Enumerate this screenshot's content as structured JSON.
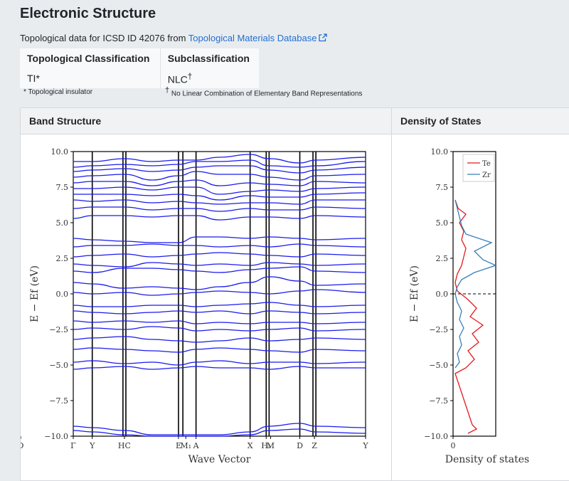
{
  "page": {
    "title": "Electronic Structure",
    "source_prefix": "Topological data for ICSD ID 42076 from ",
    "source_link": "Topological Materials Database"
  },
  "classification": {
    "col1_header": "Topological Classification",
    "col1_value": "TI*",
    "col2_header": "Subclassification",
    "col2_value": "NLC",
    "col2_sup": "†",
    "note1": "* Topological insulator",
    "note2_sup": "†",
    "note2": "No Linear Combination of Elementary Band Representations"
  },
  "panels": {
    "band_header": "Band Structure",
    "dos_header": "Density of States"
  },
  "chart_data": [
    {
      "type": "line",
      "title": "",
      "xlabel": "Wave Vector",
      "ylabel": "E − Ef (eV)",
      "ylim": [
        -10,
        10
      ],
      "yticks": [
        "10.0",
        "7.5",
        "5.0",
        "2.5",
        "0.0",
        "−2.5",
        "−5.0",
        "−7.5",
        "−10.0"
      ],
      "kpoint_labels": [
        "Γ",
        "Y",
        "HC",
        "E",
        "M₁",
        "A",
        "X",
        "H₁",
        "M",
        "D",
        "Z",
        "Y",
        "D"
      ],
      "color": "#1a1aee",
      "bands": [
        {
          "name": "b1",
          "values": [
            9.3,
            9.3,
            9.5,
            9.3,
            9.4,
            9.4,
            9.6,
            9.8,
            9.5,
            9.2,
            9.4,
            9.6
          ]
        },
        {
          "name": "b2",
          "values": [
            8.9,
            9.0,
            9.1,
            9.0,
            9.1,
            9.3,
            9.3,
            9.4,
            9.0,
            8.9,
            9.0,
            9.3
          ]
        },
        {
          "name": "b3",
          "values": [
            8.6,
            8.7,
            8.8,
            8.6,
            8.7,
            8.9,
            9.0,
            9.0,
            8.7,
            8.5,
            8.7,
            8.9
          ]
        },
        {
          "name": "b4",
          "values": [
            8.2,
            8.3,
            8.4,
            8.0,
            8.3,
            8.6,
            8.4,
            8.4,
            8.2,
            8.0,
            8.3,
            8.4
          ]
        },
        {
          "name": "b5",
          "values": [
            7.8,
            7.9,
            7.9,
            7.6,
            7.9,
            8.0,
            7.6,
            7.8,
            7.7,
            7.6,
            7.9,
            7.8
          ]
        },
        {
          "name": "b6",
          "values": [
            7.4,
            7.4,
            7.5,
            7.3,
            7.5,
            7.5,
            7.0,
            7.2,
            7.3,
            7.2,
            7.4,
            7.5
          ]
        },
        {
          "name": "b7",
          "values": [
            7.0,
            7.0,
            7.0,
            6.9,
            7.0,
            6.9,
            6.6,
            6.9,
            6.8,
            6.8,
            7.0,
            7.1
          ]
        },
        {
          "name": "b8",
          "values": [
            6.6,
            6.5,
            6.6,
            6.4,
            6.5,
            6.4,
            6.3,
            6.4,
            6.4,
            6.3,
            6.6,
            6.6
          ]
        },
        {
          "name": "b9",
          "values": [
            6.0,
            6.1,
            6.1,
            5.9,
            6.0,
            6.0,
            5.8,
            6.0,
            5.9,
            5.9,
            6.1,
            6.0
          ]
        },
        {
          "name": "b10",
          "values": [
            5.3,
            5.5,
            5.5,
            5.4,
            5.5,
            5.5,
            5.2,
            5.4,
            5.4,
            5.3,
            5.5,
            5.4
          ]
        },
        {
          "name": "b11",
          "values": [
            3.9,
            3.8,
            3.7,
            3.6,
            3.6,
            4.0,
            4.0,
            3.9,
            4.0,
            3.9,
            3.8,
            3.9
          ]
        },
        {
          "name": "b12",
          "values": [
            3.3,
            3.4,
            3.4,
            3.5,
            3.4,
            3.4,
            3.3,
            3.4,
            3.3,
            3.5,
            3.4,
            3.3
          ]
        },
        {
          "name": "b13",
          "values": [
            2.6,
            2.7,
            2.8,
            2.6,
            2.7,
            2.8,
            2.9,
            2.8,
            2.7,
            2.6,
            2.8,
            2.7
          ]
        },
        {
          "name": "b14",
          "values": [
            2.1,
            2.0,
            1.9,
            2.2,
            2.1,
            2.0,
            2.1,
            2.0,
            2.2,
            2.1,
            2.0,
            2.1
          ]
        },
        {
          "name": "b15",
          "values": [
            1.6,
            1.5,
            1.8,
            1.8,
            1.7,
            1.6,
            1.5,
            1.7,
            1.8,
            1.9,
            1.6,
            1.5
          ]
        },
        {
          "name": "b16",
          "values": [
            0.8,
            0.7,
            0.4,
            0.5,
            0.4,
            0.3,
            0.5,
            0.8,
            1.2,
            0.9,
            0.6,
            0.7
          ]
        },
        {
          "name": "b17",
          "values": [
            0.1,
            0.0,
            0.1,
            -0.1,
            0.0,
            0.1,
            0.2,
            0.1,
            0.0,
            0.2,
            0.3,
            0.1
          ]
        },
        {
          "name": "b18",
          "values": [
            -0.8,
            -0.9,
            -0.9,
            -0.8,
            -0.8,
            -0.9,
            -0.8,
            -0.7,
            -0.6,
            -0.8,
            -0.9,
            -0.8
          ]
        },
        {
          "name": "b19",
          "values": [
            -1.2,
            -1.3,
            -1.4,
            -1.3,
            -1.2,
            -1.3,
            -1.2,
            -1.4,
            -1.2,
            -1.3,
            -1.4,
            -1.3
          ]
        },
        {
          "name": "b20",
          "values": [
            -1.9,
            -2.0,
            -1.9,
            -2.0,
            -1.9,
            -2.1,
            -2.0,
            -2.1,
            -2.0,
            -2.0,
            -2.1,
            -2.0
          ]
        },
        {
          "name": "b21",
          "values": [
            -2.5,
            -2.4,
            -2.5,
            -2.3,
            -2.4,
            -2.6,
            -2.5,
            -2.6,
            -2.5,
            -2.4,
            -2.6,
            -2.5
          ]
        },
        {
          "name": "b22",
          "values": [
            -3.2,
            -3.1,
            -3.0,
            -3.2,
            -3.3,
            -3.4,
            -3.3,
            -3.1,
            -3.3,
            -3.2,
            -3.1,
            -3.2
          ]
        },
        {
          "name": "b23",
          "values": [
            -3.9,
            -3.8,
            -3.9,
            -4.0,
            -4.1,
            -3.9,
            -3.8,
            -3.9,
            -4.0,
            -4.1,
            -3.9,
            -4.0
          ]
        },
        {
          "name": "b24",
          "values": [
            -4.8,
            -4.7,
            -4.9,
            -4.8,
            -5.0,
            -4.8,
            -4.7,
            -4.9,
            -4.8,
            -4.8,
            -4.9,
            -4.8
          ]
        },
        {
          "name": "b25",
          "values": [
            -5.3,
            -5.2,
            -5.1,
            -5.3,
            -5.2,
            -5.1,
            -5.2,
            -5.2,
            -5.3,
            -5.1,
            -5.2,
            -5.2
          ]
        },
        {
          "name": "b26",
          "values": [
            -9.3,
            -9.4,
            -9.6,
            -9.9,
            -9.9,
            -9.9,
            -9.9,
            -9.7,
            -9.3,
            -9.1,
            -9.3,
            -9.4
          ]
        },
        {
          "name": "b27",
          "values": [
            -9.6,
            -9.7,
            -9.9,
            -10.0,
            -10.0,
            -10.0,
            -10.0,
            -9.9,
            -9.6,
            -9.5,
            -9.7,
            -9.8
          ]
        }
      ]
    },
    {
      "type": "line",
      "title": "",
      "xlabel": "Density of states",
      "ylabel": "E − Ef (eV)",
      "ylim": [
        -10,
        10
      ],
      "xticks": [
        "0"
      ],
      "fermi_level": 0.0,
      "legend_position": "top-right",
      "series": [
        {
          "name": "Te",
          "color": "#e41a1c",
          "energies": [
            6.6,
            6.0,
            5.6,
            5.0,
            4.4,
            3.8,
            3.2,
            2.6,
            2.0,
            1.4,
            0.8,
            0.2,
            -0.4,
            -1.0,
            -1.6,
            -2.2,
            -2.8,
            -3.4,
            -4.0,
            -4.6,
            -5.2,
            -5.6,
            -9.2,
            -9.5,
            -9.8
          ],
          "values": [
            0.05,
            0.12,
            0.3,
            0.15,
            0.25,
            0.2,
            0.3,
            0.25,
            0.2,
            0.1,
            0.05,
            0.1,
            0.35,
            0.55,
            0.4,
            0.7,
            0.45,
            0.6,
            0.35,
            0.5,
            0.3,
            0.05,
            0.45,
            0.55,
            0.35
          ]
        },
        {
          "name": "Zr",
          "color": "#377eb8",
          "energies": [
            6.6,
            6.0,
            5.4,
            4.8,
            4.2,
            3.6,
            3.0,
            2.4,
            2.0,
            1.5,
            1.0,
            0.5,
            0.0,
            -0.6,
            -1.2,
            -1.8,
            -2.4,
            -3.0,
            -3.6,
            -4.2,
            -4.8,
            -5.2
          ],
          "values": [
            0.05,
            0.1,
            0.15,
            0.2,
            0.3,
            0.9,
            0.5,
            0.7,
            1.0,
            0.5,
            0.2,
            0.1,
            0.05,
            0.1,
            0.2,
            0.15,
            0.25,
            0.15,
            0.2,
            0.1,
            0.15,
            0.05
          ]
        }
      ]
    }
  ]
}
